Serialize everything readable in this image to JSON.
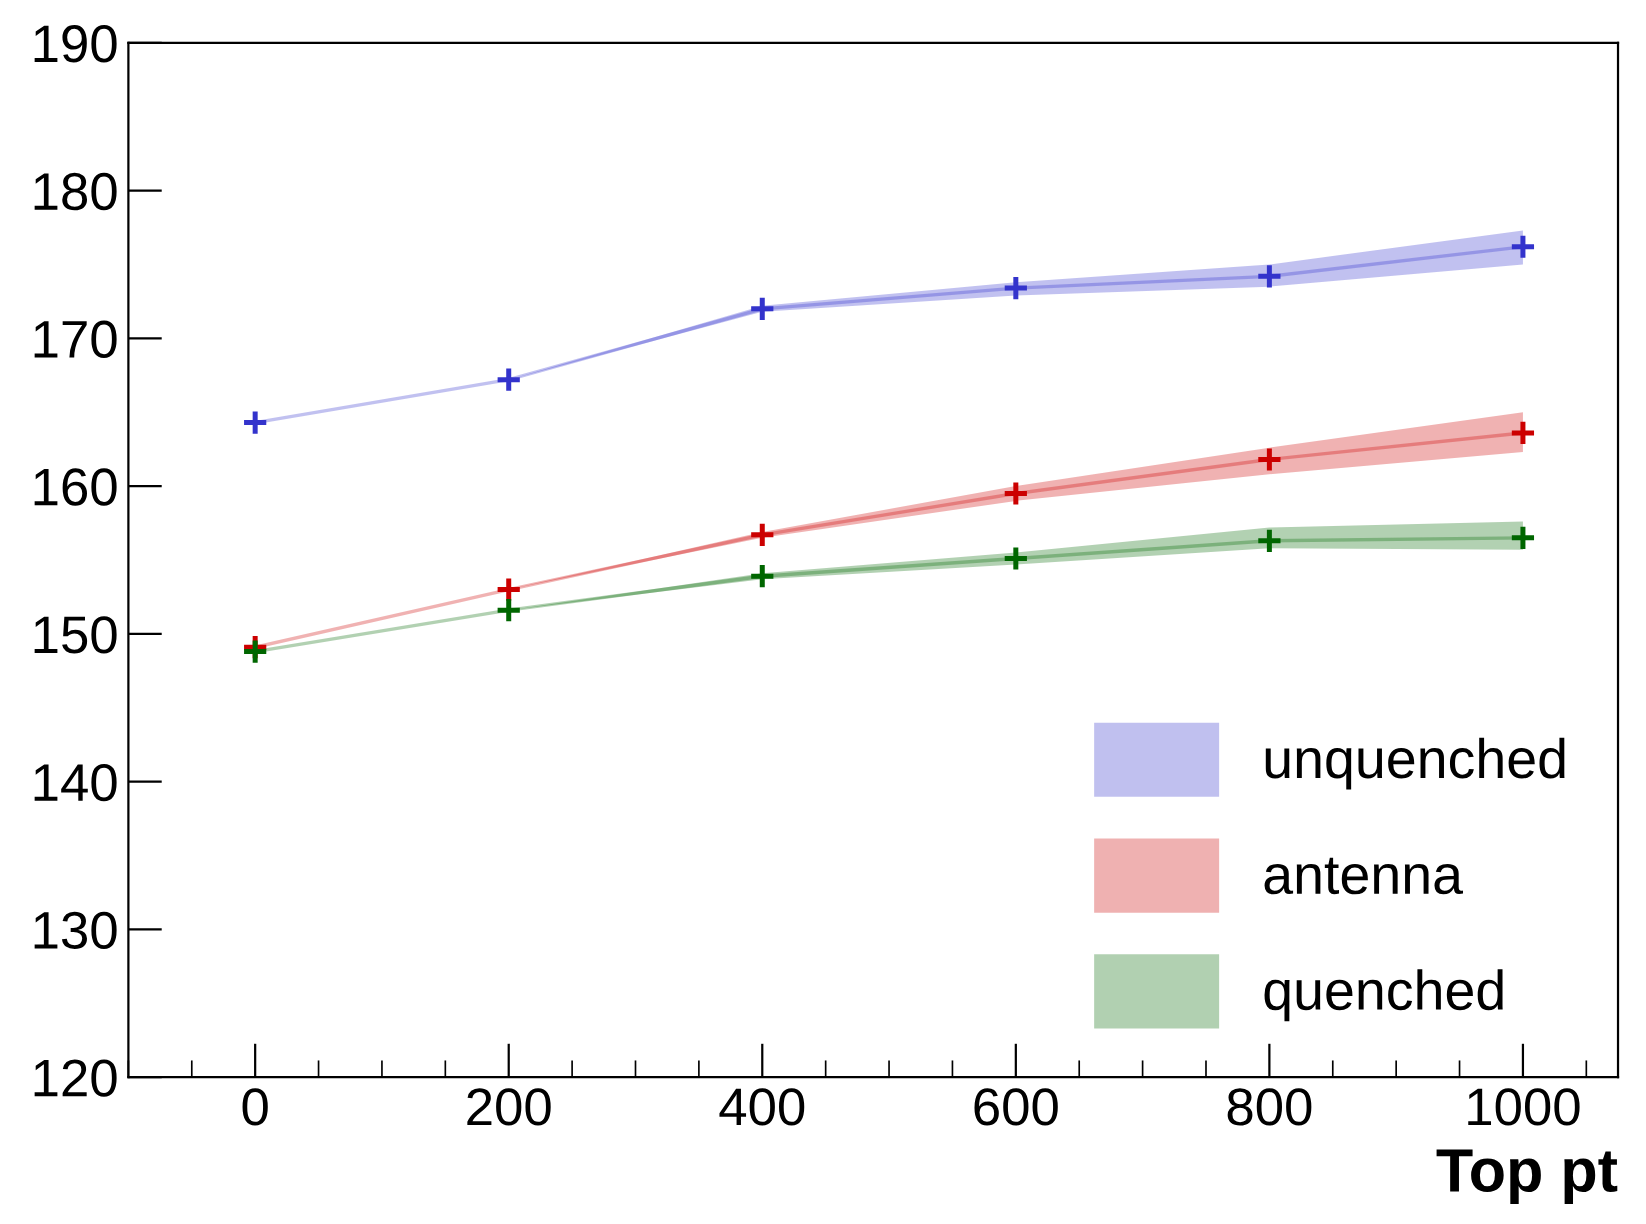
{
  "chart_data": {
    "type": "line",
    "xlabel": "Top pt",
    "x": [
      0,
      200,
      400,
      600,
      800,
      1000
    ],
    "series": [
      {
        "name": "unquenched",
        "color": "#3333cc",
        "values": [
          164.3,
          167.2,
          172.0,
          173.4,
          174.2,
          176.2
        ],
        "lower": [
          164.3,
          167.2,
          171.8,
          172.9,
          173.5,
          175.0
        ],
        "upper": [
          164.3,
          167.2,
          172.2,
          173.8,
          175.0,
          177.3
        ]
      },
      {
        "name": "antenna",
        "color": "#cc0000",
        "values": [
          149.1,
          153.0,
          156.7,
          159.5,
          161.8,
          163.6
        ],
        "lower": [
          149.1,
          153.0,
          156.5,
          159.0,
          160.8,
          162.3
        ],
        "upper": [
          149.1,
          153.0,
          156.9,
          160.0,
          162.6,
          165.0
        ]
      },
      {
        "name": "quenched",
        "color": "#006600",
        "values": [
          148.8,
          151.6,
          153.9,
          155.1,
          156.3,
          156.5
        ],
        "lower": [
          148.8,
          151.6,
          153.7,
          154.7,
          155.8,
          155.7
        ],
        "upper": [
          148.8,
          151.6,
          154.1,
          155.5,
          157.2,
          157.6
        ]
      }
    ],
    "xlim": [
      -100,
      1075
    ],
    "ylim": [
      120,
      190
    ],
    "xticks": [
      0,
      200,
      400,
      600,
      800,
      1000
    ],
    "yticks": [
      120,
      130,
      140,
      150,
      160,
      170,
      180,
      190
    ],
    "marker": "cross",
    "line_style": "solid",
    "grid": false,
    "legend": "bottom right"
  }
}
